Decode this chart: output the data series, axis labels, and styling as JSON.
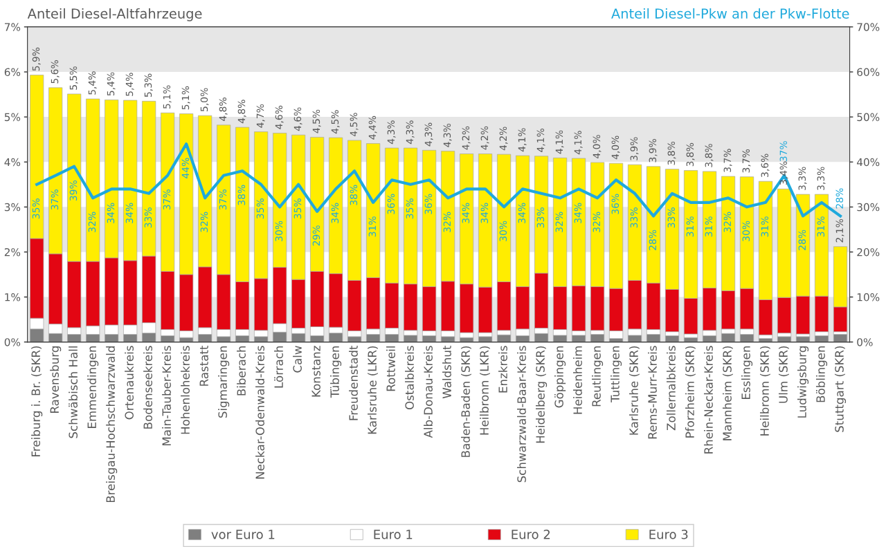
{
  "chart_data": {
    "type": "bar",
    "stacked": true,
    "title": "Anteil Diesel-Altfahrzeuge",
    "y2label": "Anteil Diesel-Pkw an der Pkw-Flotte",
    "categories": [
      "Freiburg i. Br. (SKR)",
      "Ravensburg",
      "Schwäbisch Hall",
      "Emmendingen",
      "Breisgau-Hochschwarzwald",
      "Ortenaukreis",
      "Bodenseekreis",
      "Main-Tauber-Kreis",
      "Hohenlohekreis",
      "Rastatt",
      "Sigmaringen",
      "Biberach",
      "Neckar-Odenwald-Kreis",
      "Lörrach",
      "Calw",
      "Konstanz",
      "Tübingen",
      "Freudenstadt",
      "Karlsruhe (LKR)",
      "Rottweil",
      "Ostalbkreis",
      "Alb-Donau-Kreis",
      "Waldshut",
      "Baden-Baden (SKR)",
      "Heilbronn (LKR)",
      "Enzkreis",
      "Schwarzwald-Baar-Kreis",
      "Heidelberg (SKR)",
      "Göppingen",
      "Heidenheim",
      "Reutlingen",
      "Tuttlingen",
      "Karlsruhe (SKR)",
      "Rems-Murr-Kreis",
      "Zollernalbkreis",
      "Pforzheim (SKR)",
      "Rhein-Neckar-Kreis",
      "Mannheim (SKR)",
      "Esslingen",
      "Heilbronn (SKR)",
      "Ulm (SKR)",
      "Ludwigsburg",
      "Böblingen",
      "Stuttgart (SKR)"
    ],
    "series": [
      {
        "name": "vor Euro 1",
        "color": "#7f7f7f",
        "values": [
          0.29,
          0.19,
          0.17,
          0.17,
          0.17,
          0.17,
          0.2,
          0.14,
          0.1,
          0.17,
          0.12,
          0.14,
          0.12,
          0.22,
          0.19,
          0.14,
          0.2,
          0.12,
          0.17,
          0.17,
          0.15,
          0.14,
          0.12,
          0.1,
          0.12,
          0.16,
          0.14,
          0.19,
          0.15,
          0.15,
          0.17,
          0.08,
          0.15,
          0.17,
          0.14,
          0.1,
          0.14,
          0.19,
          0.17,
          0.08,
          0.12,
          0.12,
          0.14,
          0.17
        ]
      },
      {
        "name": "Euro 1",
        "color": "#ffffff",
        "values": [
          0.24,
          0.21,
          0.15,
          0.19,
          0.21,
          0.21,
          0.23,
          0.14,
          0.15,
          0.15,
          0.16,
          0.14,
          0.14,
          0.19,
          0.12,
          0.2,
          0.13,
          0.13,
          0.12,
          0.14,
          0.11,
          0.11,
          0.13,
          0.11,
          0.09,
          0.1,
          0.15,
          0.12,
          0.13,
          0.1,
          0.09,
          0.17,
          0.14,
          0.11,
          0.09,
          0.08,
          0.12,
          0.1,
          0.12,
          0.08,
          0.08,
          0.06,
          0.09,
          0.06
        ]
      },
      {
        "name": "Euro 2",
        "color": "#e30613",
        "values": [
          1.77,
          1.56,
          1.47,
          1.43,
          1.49,
          1.43,
          1.48,
          1.29,
          1.25,
          1.35,
          1.22,
          1.06,
          1.15,
          1.25,
          1.08,
          1.23,
          1.19,
          1.12,
          1.14,
          1.0,
          1.03,
          0.98,
          1.1,
          1.08,
          1.01,
          1.08,
          0.94,
          1.22,
          0.95,
          1.0,
          0.97,
          0.94,
          1.08,
          1.03,
          0.94,
          0.79,
          0.94,
          0.85,
          0.9,
          0.78,
          0.79,
          0.84,
          0.79,
          0.55
        ]
      },
      {
        "name": "Euro 3",
        "color": "#ffed00",
        "values": [
          3.63,
          3.69,
          3.72,
          3.61,
          3.51,
          3.56,
          3.44,
          3.52,
          3.57,
          3.36,
          3.32,
          3.43,
          3.26,
          2.98,
          3.21,
          2.98,
          3.02,
          3.11,
          2.98,
          3.0,
          3.02,
          3.03,
          2.89,
          2.89,
          2.96,
          2.83,
          2.91,
          2.6,
          2.86,
          2.83,
          2.76,
          2.78,
          2.57,
          2.59,
          2.67,
          2.84,
          2.59,
          2.54,
          2.48,
          2.63,
          2.41,
          2.26,
          2.26,
          1.34
        ]
      },
      {
        "type": "line",
        "axis": "y2",
        "color": "#1fa9dc",
        "values": [
          35,
          37,
          39,
          32,
          34,
          34,
          33,
          37,
          44,
          32,
          37,
          38,
          35,
          30,
          35,
          29,
          34,
          38,
          31,
          36,
          35,
          36,
          32,
          34,
          34,
          30,
          34,
          33,
          32,
          34,
          32,
          36,
          33,
          28,
          33,
          31,
          31,
          32,
          30,
          31,
          37,
          28,
          31,
          28
        ],
        "value_labels": [
          "35%",
          "37%",
          "39%",
          "32%",
          "34%",
          "34%",
          "33%",
          "37%",
          "44%",
          "32%",
          "37%",
          "38%",
          "35%",
          "30%",
          "35%",
          "29%",
          "34%",
          "38%",
          "31%",
          "36%",
          "35%",
          "36%",
          "32%",
          "34%",
          "34%",
          "30%",
          "34%",
          "33%",
          "32%",
          "34%",
          "32%",
          "36%",
          "33%",
          "28%",
          "33%",
          "31%",
          "31%",
          "32%",
          "30%",
          "31%",
          "37%",
          "28%",
          "31%",
          "28%"
        ]
      }
    ],
    "totals": [
      "5,9%",
      "5,6%",
      "5,5%",
      "5,4%",
      "5,4%",
      "5,4%",
      "5,3%",
      "5,1%",
      "5,1%",
      "5,0%",
      "4,8%",
      "4,8%",
      "4,7%",
      "4,6%",
      "4,6%",
      "4,5%",
      "4,5%",
      "4,5%",
      "4,4%",
      "4,3%",
      "4,3%",
      "4,3%",
      "4,3%",
      "4,2%",
      "4,2%",
      "4,2%",
      "4,1%",
      "4,1%",
      "4,1%",
      "4,1%",
      "4,0%",
      "4,0%",
      "3,9%",
      "3,9%",
      "3,8%",
      "3,8%",
      "3,8%",
      "3,7%",
      "3,7%",
      "3,6%",
      "3,4%",
      "3,3%",
      "3,3%",
      "2,1%"
    ],
    "ylim": [
      0,
      7
    ],
    "yticks": [
      {
        "value": 0,
        "label": "0%"
      },
      {
        "value": 1,
        "label": "1%"
      },
      {
        "value": 2,
        "label": "2%"
      },
      {
        "value": 3,
        "label": "3%"
      },
      {
        "value": 4,
        "label": "4%"
      },
      {
        "value": 5,
        "label": "5%"
      },
      {
        "value": 6,
        "label": "6%"
      },
      {
        "value": 7,
        "label": "7%"
      }
    ],
    "y2lim": [
      0,
      70
    ],
    "y2ticks": [
      {
        "value": 0,
        "label": "0%"
      },
      {
        "value": 10,
        "label": "10%"
      },
      {
        "value": 20,
        "label": "20%"
      },
      {
        "value": 30,
        "label": "30%"
      },
      {
        "value": 40,
        "label": "40%"
      },
      {
        "value": 50,
        "label": "50%"
      },
      {
        "value": 60,
        "label": "60%"
      },
      {
        "value": 70,
        "label": "70%"
      }
    ],
    "bands": [
      {
        "axis": "y",
        "from": 0,
        "to": 1,
        "color": "#e6e6e6"
      },
      {
        "axis": "y",
        "from": 2,
        "to": 3,
        "color": "#e6e6e6"
      },
      {
        "axis": "y",
        "from": 4,
        "to": 5,
        "color": "#e6e6e6"
      },
      {
        "axis": "y",
        "from": 6,
        "to": 7,
        "color": "#e6e6e6"
      }
    ],
    "legend": "bottom"
  }
}
